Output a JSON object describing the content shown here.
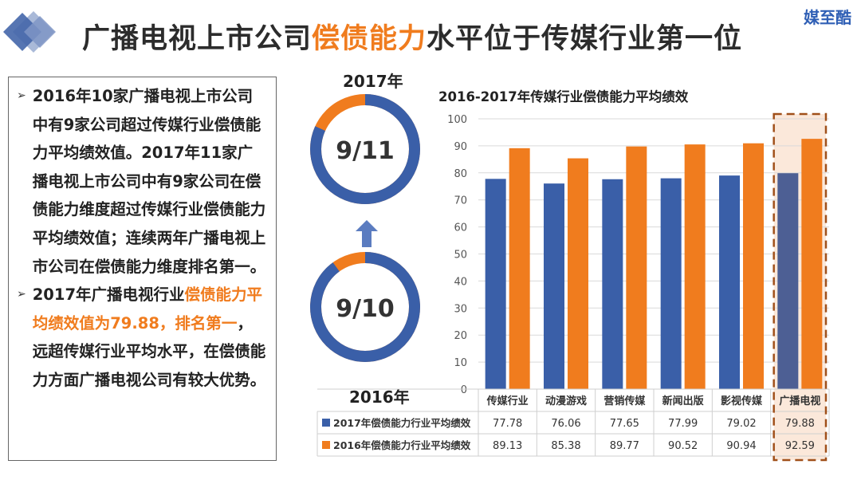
{
  "header": {
    "title_part1": "广播电视上市公司",
    "title_highlight": "偿债能力",
    "title_part2": "水平位于传媒行业第一位",
    "brand": "媒至酷"
  },
  "text_box": {
    "bullet1": "2016年10家广播电视上市公司中有9家公司超过传媒行业偿债能力平均绩效值。2017年11家广播电视上市公司中有9家公司在偿债能力维度超过传媒行业偿债能力平均绩效值；连续两年广播电视上市公司在偿债能力维度排名第一。",
    "bullet2_prefix": "2017年广播电视行业",
    "bullet2_highlight": "偿债能力平均绩效值为79.88，排名第一",
    "bullet2_suffix": "，远超传媒行业平均水平，在偿债能力方面广播电视公司有较大优势。"
  },
  "donuts": {
    "top": {
      "label": "2017年",
      "center": "9/11",
      "fraction": 0.8182
    },
    "bottom": {
      "label": "2016年",
      "center": "9/10",
      "fraction": 0.9
    }
  },
  "colors": {
    "blue": "#3a5fa8",
    "orange": "#f07c1e",
    "arrow": "#5b7cc0",
    "highlight_blue": "#4d5f94"
  },
  "chart_data": {
    "type": "bar",
    "title": "2016-2017年传媒行业偿债能力平均绩效",
    "categories": [
      "传媒行业",
      "动漫游戏",
      "营销传媒",
      "新闻出版",
      "影视传媒",
      "广播电视"
    ],
    "series": [
      {
        "name": "2017年偿债能力行业平均绩效",
        "values": [
          77.78,
          76.06,
          77.65,
          77.99,
          79.02,
          79.88
        ]
      },
      {
        "name": "2016年偿债能力行业平均绩效",
        "values": [
          89.13,
          85.38,
          89.77,
          90.52,
          90.94,
          92.59
        ]
      }
    ],
    "series_labels": [
      [
        "77.78",
        "76.06",
        "77.65",
        "77.99",
        "79.02",
        "79.88"
      ],
      [
        "89.13",
        "85.38",
        "89.77",
        "90.52",
        "90.94",
        "92.59"
      ]
    ],
    "ylim": [
      0,
      100
    ],
    "yticks": [
      "0",
      "10",
      "20",
      "30",
      "40",
      "50",
      "60",
      "70",
      "80",
      "90",
      "100"
    ],
    "highlight_category": "广播电视",
    "grid": true,
    "legend": "data-table"
  }
}
